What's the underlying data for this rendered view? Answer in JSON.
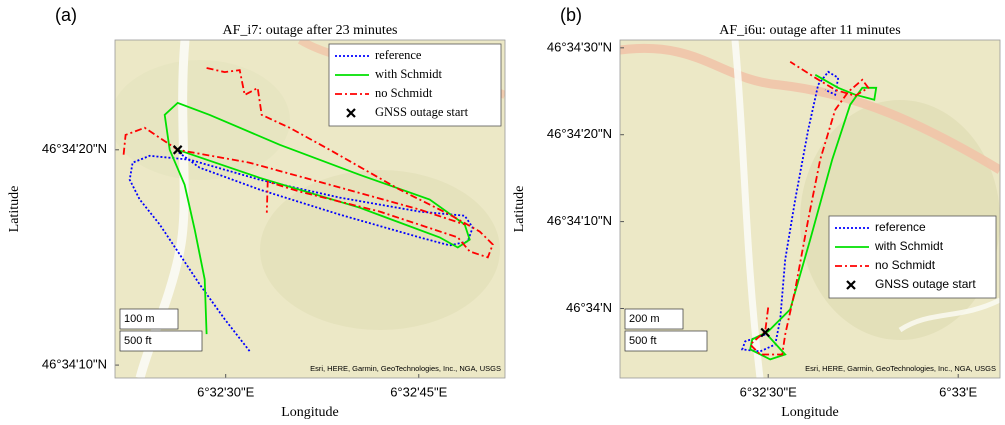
{
  "chart_data": [
    {
      "type": "line",
      "panel_label": "(a)",
      "title": "AF_i7: outage after 23 minutes",
      "x_label": "Longitude",
      "y_label": "Latitude",
      "xlim": [
        21.4,
        51.7
      ],
      "ylim": [
        9.4,
        25.1
      ],
      "xticks": [
        {
          "value": 30,
          "label": "6°32'30\"E"
        },
        {
          "value": 45,
          "label": "6°32'45\"E"
        }
      ],
      "yticks": [
        {
          "value": 10,
          "label": "46°34'10\"N"
        },
        {
          "value": 20,
          "label": "46°34'20\"N"
        }
      ],
      "legend": "upper right",
      "scale_labels": [
        "100 m",
        "500 ft"
      ],
      "attribution": "Esri, HERE, Garmin, GeoTechnologies, Inc., NGA, USGS",
      "series": [
        {
          "name": "reference",
          "color": "#0000ff",
          "linestyle": "dotted",
          "x": [
            31.86,
            29.92,
            27.98,
            26.43,
            24.87,
            23.32,
            22.54,
            22.77,
            24.09,
            27.2,
            32.64,
            38.86,
            45.07,
            48.57,
            49.19,
            48.8,
            47.4,
            45.07,
            38.86,
            32.64,
            27.98,
            26.27
          ],
          "values": [
            10.65,
            12.13,
            13.75,
            15.14,
            16.53,
            17.69,
            18.61,
            19.4,
            19.72,
            19.54,
            18.61,
            17.78,
            17.13,
            16.94,
            16.39,
            15.74,
            15.56,
            15.93,
            16.99,
            18.15,
            19.17,
            19.91
          ]
        },
        {
          "name": "with Schmidt",
          "color": "#00e000",
          "linestyle": "solid",
          "x": [
            28.52,
            28.37,
            27.59,
            26.81,
            25.65,
            25.26,
            26.27,
            28.76,
            34.2,
            40.41,
            45.85,
            48.57,
            48.96,
            48.03,
            46.63,
            40.41,
            32.64,
            26.27
          ],
          "values": [
            11.44,
            13.98,
            16.3,
            18.38,
            20.0,
            21.62,
            22.18,
            21.62,
            20.23,
            18.84,
            17.69,
            16.53,
            15.83,
            15.46,
            15.93,
            17.31,
            18.7,
            20.0
          ]
        },
        {
          "name": "no Schmidt",
          "color": "#ff0000",
          "linestyle": "dashdot",
          "x": [
            28.52,
            29.92,
            31.09,
            31.48,
            32.49,
            32.8,
            34.97,
            38.08,
            43.52,
            47.4,
            49.74,
            50.75,
            50.36,
            48.96,
            48.03,
            41.97,
            35.75,
            33.26,
            33.19,
            null,
            22.07,
            22.22,
            23.71,
            26.27,
            31.86,
            38.08,
            45.07,
            48.57
          ],
          "values": [
            23.8,
            23.61,
            23.7,
            22.55,
            22.87,
            21.62,
            21.02,
            20.0,
            18.15,
            16.99,
            16.2,
            15.6,
            15.0,
            15.28,
            15.93,
            17.13,
            18.06,
            18.52,
            17.08,
            null,
            19.77,
            20.69,
            21.02,
            20.0,
            19.4,
            18.38,
            17.22,
            16.53
          ]
        },
        {
          "name": "GNSS outage start",
          "color": "#000000",
          "marker": "x",
          "x": [
            26.27
          ],
          "values": [
            20.0
          ]
        }
      ]
    },
    {
      "type": "line",
      "panel_label": "(b)",
      "title": "AF_i6u: outage after 11 minutes",
      "x_label": "Longitude",
      "y_label": "Latitude",
      "xlim": [
        6.6,
        66.6
      ],
      "ylim": [
        -8.0,
        30.9
      ],
      "xticks": [
        {
          "value": 30,
          "label": "6°32'30\"E"
        },
        {
          "value": 60,
          "label": "6°33'E"
        }
      ],
      "yticks": [
        {
          "value": 0,
          "label": "46°34'N"
        },
        {
          "value": 10,
          "label": "46°34'10\"N"
        },
        {
          "value": 20,
          "label": "46°34'20\"N"
        },
        {
          "value": 30,
          "label": "46°34'30\"N"
        }
      ],
      "legend": "lower right",
      "scale_labels": [
        "200 m",
        "500 ft"
      ],
      "attribution": "Esri, HERE, Garmin, GeoTechnologies, Inc., NGA, USGS",
      "series": [
        {
          "name": "reference",
          "color": "#0000ff",
          "linestyle": "dotted",
          "x": [
            29.53,
            26.37,
            25.89,
            28.74,
            31.11,
            31.9,
            32.69,
            34.27,
            36.32,
            37.9,
            39.48,
            41.06,
            40.58,
            39.0
          ],
          "values": [
            -2.99,
            -3.79,
            -4.71,
            -4.94,
            -4.14,
            -1.26,
            5.63,
            12.53,
            20.57,
            25.75,
            27.24,
            26.55,
            24.6,
            25.17
          ]
        },
        {
          "name": "with Schmidt",
          "color": "#00e000",
          "linestyle": "solid",
          "x": [
            29.53,
            32.69,
            30.32,
            27.16,
            27.47,
            30.0,
            33.48,
            36.63,
            40.11,
            42.95,
            44.85,
            47.06,
            46.75,
            43.74,
            41.06,
            37.43
          ],
          "values": [
            -2.76,
            -5.29,
            -5.86,
            -4.71,
            -3.56,
            -2.64,
            -0.11,
            7.93,
            17.13,
            23.45,
            25.4,
            25.4,
            24.02,
            24.6,
            25.4,
            26.9
          ]
        },
        {
          "name": "no Schmidt",
          "color": "#ff0000",
          "linestyle": "dashdot",
          "x": [
            30.0,
            29.53,
            27.16,
            28.74,
            32.21,
            32.69,
            34.27,
            36.32,
            38.21,
            40.58,
            42.64,
            44.85,
            45.8,
            43.74,
            40.58,
            37.43,
            33.48
          ],
          "values": [
            0.11,
            -2.64,
            -4.14,
            -5.29,
            -5.29,
            -2.99,
            2.18,
            10.23,
            17.13,
            22.87,
            24.94,
            26.32,
            25.4,
            24.48,
            25.17,
            26.55,
            28.39
          ]
        },
        {
          "name": "GNSS outage start",
          "color": "#000000",
          "marker": "x",
          "x": [
            29.53
          ],
          "values": [
            -2.76
          ]
        }
      ]
    }
  ]
}
